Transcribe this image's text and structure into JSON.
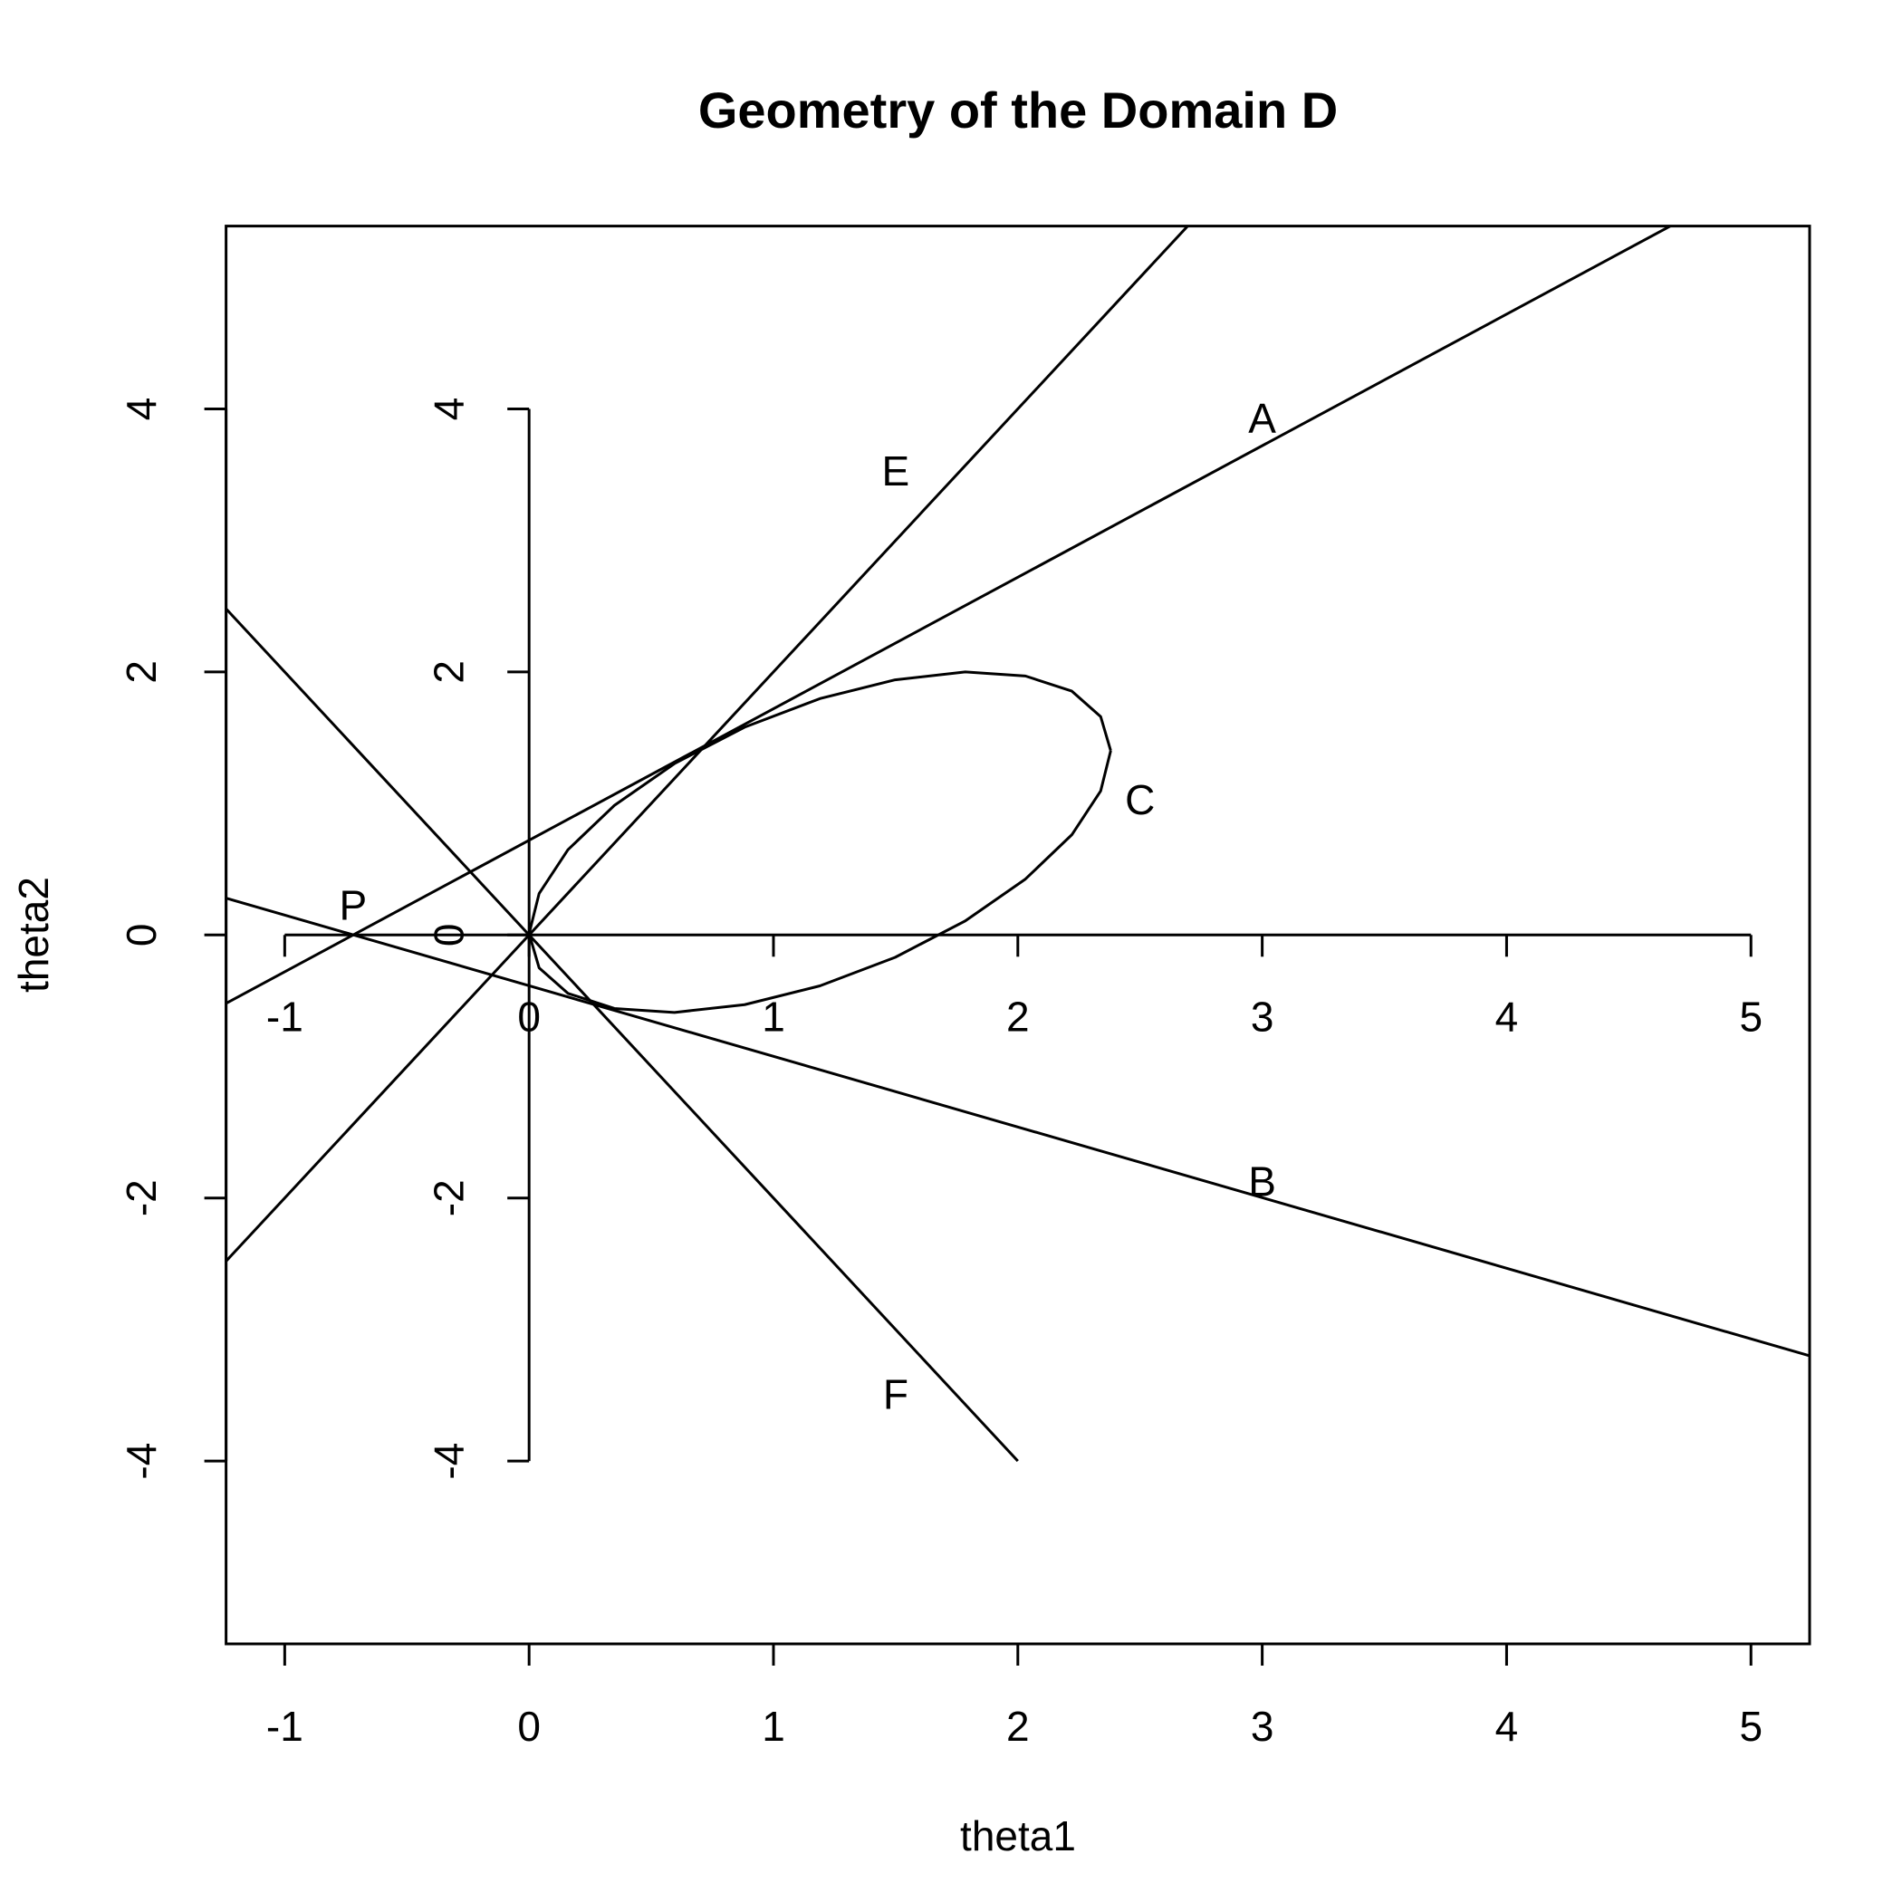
{
  "chart_data": {
    "type": "line",
    "title": "Geometry of the Domain D",
    "x_label": "theta1",
    "y_label": "theta2",
    "xlim": [
      -1.24,
      5.24
    ],
    "ylim": [
      -5.39,
      5.39
    ],
    "xticks": [
      -1,
      0,
      1,
      2,
      3,
      4,
      5
    ],
    "yticks": [
      -4,
      -2,
      0,
      2,
      4
    ],
    "inner_axes": {
      "xticks": [
        -1,
        0,
        1,
        2,
        3,
        4,
        5
      ],
      "yticks": [
        -4,
        -2,
        0,
        2,
        4
      ]
    },
    "series": [
      {
        "color": "#000000",
        "x": [
          -1.24,
          5.24
        ],
        "y": [
          -0.52,
          5.96
        ]
      },
      {
        "color": "#000000",
        "x": [
          -1.24,
          2.7
        ],
        "y": [
          -2.48,
          5.4
        ]
      },
      {
        "color": "#000000",
        "x": [
          -1.24,
          5.24
        ],
        "y": [
          0.28,
          -3.2
        ]
      },
      {
        "color": "#000000",
        "x": [
          -1.24,
          2
        ],
        "y": [
          2.48,
          -4
        ]
      },
      {
        "color": "#000000",
        "x": [
          2.38,
          2.339,
          2.221,
          2.031,
          1.785,
          1.498,
          1.19,
          0.882,
          0.595,
          0.349,
          0.159,
          0.041,
          0,
          0.041,
          0.159,
          0.349,
          0.595,
          0.882,
          1.19,
          1.498,
          1.785,
          2.031,
          2.221,
          2.339,
          2.38
        ],
        "y": [
          1.401,
          1.66,
          1.854,
          1.969,
          2.0,
          1.94,
          1.797,
          1.58,
          1.303,
          0.985,
          0.648,
          0.315,
          0.01,
          -0.25,
          -0.444,
          -0.559,
          -0.589,
          -0.53,
          -0.387,
          -0.17,
          0.107,
          0.425,
          0.762,
          1.095,
          1.401
        ]
      }
    ],
    "annotations": [
      {
        "text": "A",
        "x": 3,
        "y": 3.9
      },
      {
        "text": "E",
        "x": 1.5,
        "y": 3.5
      },
      {
        "text": "C",
        "x": 2.5,
        "y": 1.0
      },
      {
        "text": "P",
        "x": -0.72,
        "y": 0.2
      },
      {
        "text": "B",
        "x": 3,
        "y": -1.9
      },
      {
        "text": "F",
        "x": 1.5,
        "y": -3.52
      }
    ]
  }
}
